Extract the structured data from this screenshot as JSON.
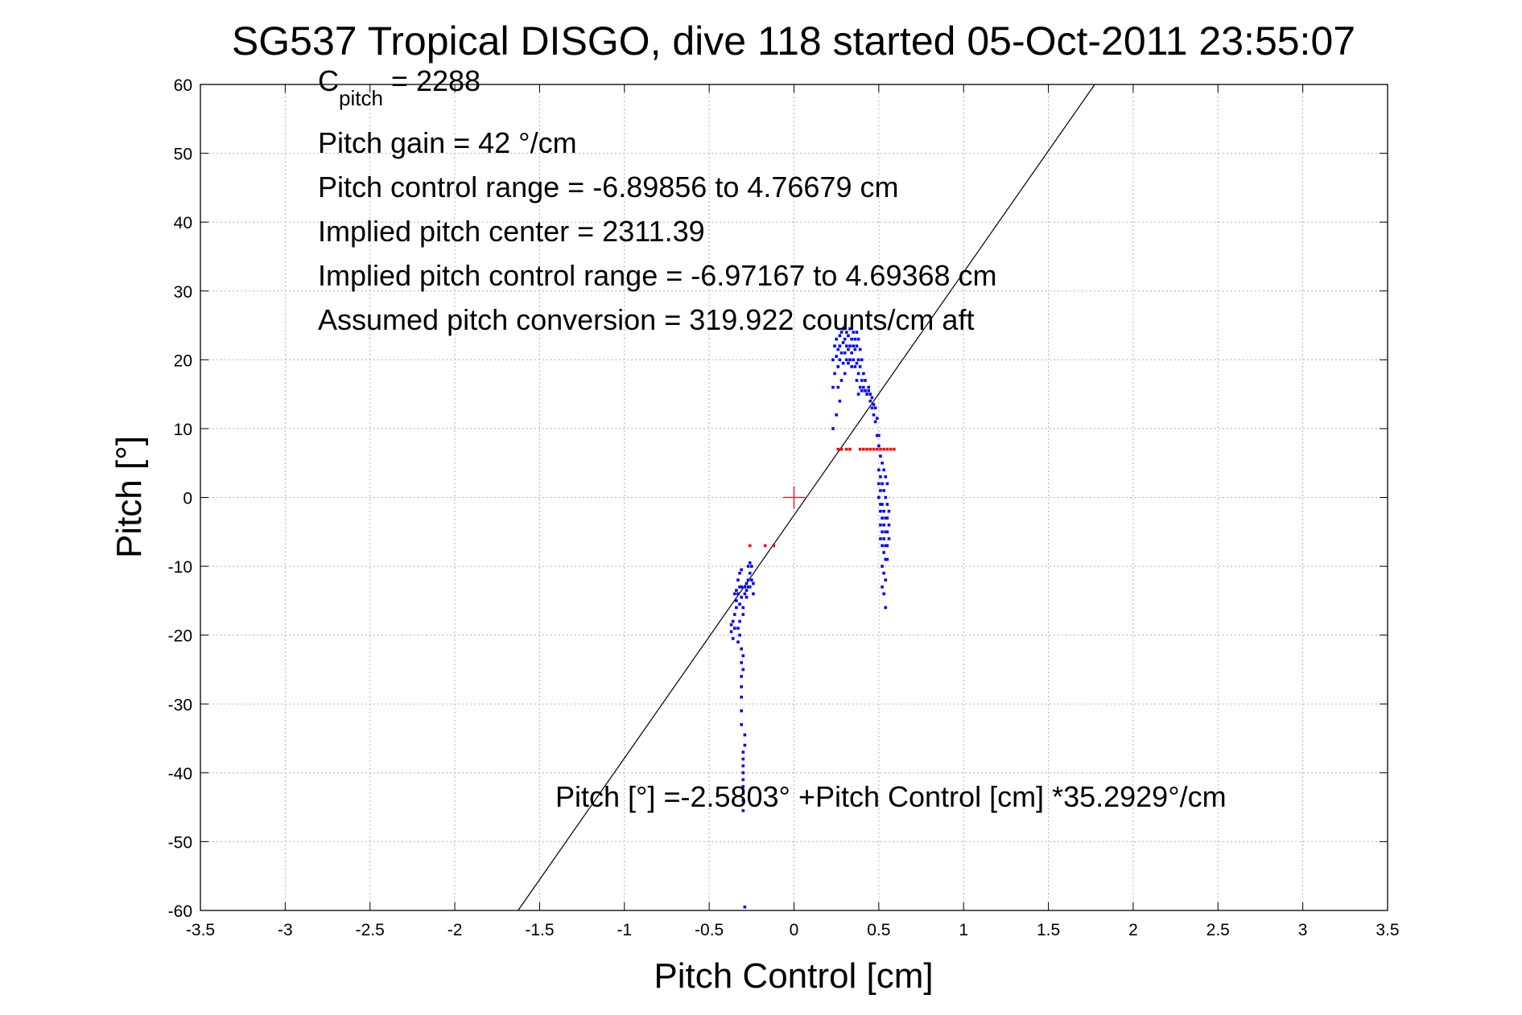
{
  "chart_data": {
    "type": "scatter",
    "title": "SG537 Tropical DISGO, dive 118 started 05-Oct-2011 23:55:07",
    "xlabel": "Pitch Control [cm]",
    "ylabel": "Pitch [°]",
    "xlim": [
      -3.5,
      3.5
    ],
    "ylim": [
      -60,
      60
    ],
    "xticks": [
      -3.5,
      -3,
      -2.5,
      -2,
      -1.5,
      -1,
      -0.5,
      0,
      0.5,
      1,
      1.5,
      2,
      2.5,
      3,
      3.5
    ],
    "yticks": [
      -60,
      -50,
      -40,
      -30,
      -20,
      -10,
      0,
      10,
      20,
      30,
      40,
      50,
      60
    ],
    "xtick_labels": [
      "-3.5",
      "-3",
      "-2.5",
      "-2",
      "-1.5",
      "-1",
      "-0.5",
      "0",
      "0.5",
      "1",
      "1.5",
      "2",
      "2.5",
      "3",
      "3.5"
    ],
    "ytick_labels": [
      "-60",
      "-50",
      "-40",
      "-30",
      "-20",
      "-10",
      "0",
      "10",
      "20",
      "30",
      "40",
      "50",
      "60"
    ],
    "grid": true,
    "legend": "none",
    "annotations": {
      "cpitch_main": "C",
      "cpitch_sub": "pitch",
      "cpitch_value": " = 2288",
      "line2": "Pitch gain = 42 °/cm",
      "line3": "Pitch control range = -6.89856 to 4.76679 cm",
      "line4": "Implied pitch center = 2311.39",
      "line5": "Implied pitch control range = -6.97167 to 4.69368 cm",
      "line6": "Assumed pitch conversion = 319.922 counts/cm aft",
      "fit_equation": "Pitch [°] =-2.5803° +Pitch Control [cm] *35.2929°/cm"
    },
    "fit_line": {
      "intercept": -2.5803,
      "slope": 35.2929,
      "color": "#000000"
    },
    "center_marker": {
      "x": 0,
      "y": 0,
      "color": "#ff0000"
    },
    "series": [
      {
        "color": "#0000ff",
        "points": [
          [
            -0.37,
            -18.5
          ],
          [
            -0.37,
            -19.5
          ],
          [
            -0.36,
            -18
          ],
          [
            -0.36,
            -20.5
          ],
          [
            -0.35,
            -17
          ],
          [
            -0.35,
            -19
          ],
          [
            -0.35,
            -14
          ],
          [
            -0.34,
            -15
          ],
          [
            -0.34,
            -13.5
          ],
          [
            -0.34,
            -16
          ],
          [
            -0.33,
            -12
          ],
          [
            -0.33,
            -14
          ],
          [
            -0.33,
            -19
          ],
          [
            -0.33,
            -21
          ],
          [
            -0.32,
            -11
          ],
          [
            -0.32,
            -13
          ],
          [
            -0.32,
            -15.5
          ],
          [
            -0.32,
            -18
          ],
          [
            -0.32,
            -20
          ],
          [
            -0.31,
            -10.5
          ],
          [
            -0.31,
            -13
          ],
          [
            -0.31,
            -14.5
          ],
          [
            -0.31,
            -22
          ],
          [
            -0.31,
            -24
          ],
          [
            -0.31,
            -26
          ],
          [
            -0.31,
            -27.5
          ],
          [
            -0.31,
            -29
          ],
          [
            -0.31,
            -31
          ],
          [
            -0.31,
            -33
          ],
          [
            -0.3,
            -16
          ],
          [
            -0.3,
            -17
          ],
          [
            -0.3,
            -23
          ],
          [
            -0.3,
            -25
          ],
          [
            -0.3,
            -37
          ],
          [
            -0.3,
            -38
          ],
          [
            -0.3,
            -39
          ],
          [
            -0.3,
            -40
          ],
          [
            -0.3,
            -41
          ],
          [
            -0.3,
            -42
          ],
          [
            -0.3,
            -43
          ],
          [
            -0.3,
            -44
          ],
          [
            -0.3,
            -45.5
          ],
          [
            -0.29,
            -13
          ],
          [
            -0.29,
            -14
          ],
          [
            -0.29,
            -34.5
          ],
          [
            -0.29,
            -36
          ],
          [
            -0.29,
            -59.5
          ],
          [
            -0.28,
            -12.5
          ],
          [
            -0.28,
            -13.5
          ],
          [
            -0.28,
            -14.5
          ],
          [
            -0.27,
            -12
          ],
          [
            -0.27,
            -13
          ],
          [
            -0.27,
            -10
          ],
          [
            -0.26,
            -9.5
          ],
          [
            -0.26,
            -11
          ],
          [
            -0.26,
            -13
          ],
          [
            -0.25,
            -10
          ],
          [
            -0.25,
            -12
          ],
          [
            -0.24,
            -12.5
          ],
          [
            -0.24,
            -14
          ],
          [
            0.23,
            10
          ],
          [
            0.23,
            16
          ],
          [
            0.23,
            20
          ],
          [
            0.24,
            18
          ],
          [
            0.24,
            22
          ],
          [
            0.25,
            12
          ],
          [
            0.25,
            20.5
          ],
          [
            0.25,
            23
          ],
          [
            0.26,
            16
          ],
          [
            0.26,
            19
          ],
          [
            0.26,
            21.5
          ],
          [
            0.27,
            14
          ],
          [
            0.27,
            20
          ],
          [
            0.27,
            22
          ],
          [
            0.27,
            23.5
          ],
          [
            0.28,
            17
          ],
          [
            0.28,
            21
          ],
          [
            0.28,
            24
          ],
          [
            0.29,
            19.5
          ],
          [
            0.29,
            22.5
          ],
          [
            0.29,
            24.5
          ],
          [
            0.3,
            18
          ],
          [
            0.3,
            21
          ],
          [
            0.3,
            23
          ],
          [
            0.31,
            20
          ],
          [
            0.31,
            22
          ],
          [
            0.31,
            24
          ],
          [
            0.32,
            19.5
          ],
          [
            0.32,
            21.5
          ],
          [
            0.32,
            23.5
          ],
          [
            0.33,
            20
          ],
          [
            0.33,
            22
          ],
          [
            0.33,
            24.5
          ],
          [
            0.34,
            19
          ],
          [
            0.34,
            21
          ],
          [
            0.34,
            23
          ],
          [
            0.35,
            20
          ],
          [
            0.35,
            22
          ],
          [
            0.35,
            24
          ],
          [
            0.36,
            19
          ],
          [
            0.36,
            21.5
          ],
          [
            0.36,
            23
          ],
          [
            0.37,
            17
          ],
          [
            0.37,
            19.5
          ],
          [
            0.37,
            22
          ],
          [
            0.37,
            24
          ],
          [
            0.38,
            15
          ],
          [
            0.38,
            18
          ],
          [
            0.38,
            20
          ],
          [
            0.38,
            23
          ],
          [
            0.39,
            16
          ],
          [
            0.39,
            19
          ],
          [
            0.39,
            21.5
          ],
          [
            0.4,
            15.5
          ],
          [
            0.4,
            17
          ],
          [
            0.4,
            20
          ],
          [
            0.41,
            16
          ],
          [
            0.41,
            18
          ],
          [
            0.42,
            15.5
          ],
          [
            0.42,
            17
          ],
          [
            0.43,
            15
          ],
          [
            0.44,
            15.5
          ],
          [
            0.44,
            16
          ],
          [
            0.45,
            14
          ],
          [
            0.45,
            15
          ],
          [
            0.46,
            13
          ],
          [
            0.46,
            14.5
          ],
          [
            0.47,
            12
          ],
          [
            0.47,
            13.5
          ],
          [
            0.48,
            13
          ],
          [
            0.48,
            11
          ],
          [
            0.49,
            9
          ],
          [
            0.49,
            11.5
          ],
          [
            0.5,
            7.5
          ],
          [
            0.5,
            9
          ],
          [
            0.5,
            4
          ],
          [
            0.5,
            2
          ],
          [
            0.5,
            0
          ],
          [
            0.51,
            6
          ],
          [
            0.51,
            3
          ],
          [
            0.51,
            1
          ],
          [
            0.51,
            -1
          ],
          [
            0.51,
            -2
          ],
          [
            0.51,
            -4
          ],
          [
            0.51,
            -6
          ],
          [
            0.52,
            5
          ],
          [
            0.52,
            2
          ],
          [
            0.52,
            -1
          ],
          [
            0.52,
            -3
          ],
          [
            0.52,
            -5
          ],
          [
            0.52,
            -7
          ],
          [
            0.52,
            -10
          ],
          [
            0.52,
            -13
          ],
          [
            0.53,
            4
          ],
          [
            0.53,
            1
          ],
          [
            0.53,
            -2
          ],
          [
            0.53,
            -4
          ],
          [
            0.53,
            -6
          ],
          [
            0.53,
            -8
          ],
          [
            0.53,
            -11
          ],
          [
            0.53,
            -14
          ],
          [
            0.54,
            3
          ],
          [
            0.54,
            0
          ],
          [
            0.54,
            -3
          ],
          [
            0.54,
            -5
          ],
          [
            0.54,
            -7
          ],
          [
            0.54,
            -9
          ],
          [
            0.54,
            -12
          ],
          [
            0.54,
            -16
          ],
          [
            0.55,
            2
          ],
          [
            0.55,
            -1
          ],
          [
            0.55,
            -3
          ],
          [
            0.55,
            -5
          ],
          [
            0.55,
            -7
          ],
          [
            0.55,
            -9
          ],
          [
            0.56,
            -2
          ],
          [
            0.56,
            -4
          ],
          [
            0.56,
            -6
          ]
        ]
      },
      {
        "color": "#ff0000",
        "points": [
          [
            -0.26,
            -7
          ],
          [
            -0.17,
            -7
          ],
          [
            -0.12,
            -7
          ],
          [
            0.26,
            7
          ],
          [
            0.28,
            7
          ],
          [
            0.31,
            7
          ],
          [
            0.33,
            7
          ],
          [
            0.39,
            7
          ],
          [
            0.41,
            7
          ],
          [
            0.43,
            7
          ],
          [
            0.45,
            7
          ],
          [
            0.47,
            7
          ],
          [
            0.49,
            7
          ],
          [
            0.51,
            7
          ],
          [
            0.53,
            7
          ],
          [
            0.55,
            7
          ],
          [
            0.57,
            7
          ],
          [
            0.59,
            7
          ]
        ]
      }
    ]
  }
}
